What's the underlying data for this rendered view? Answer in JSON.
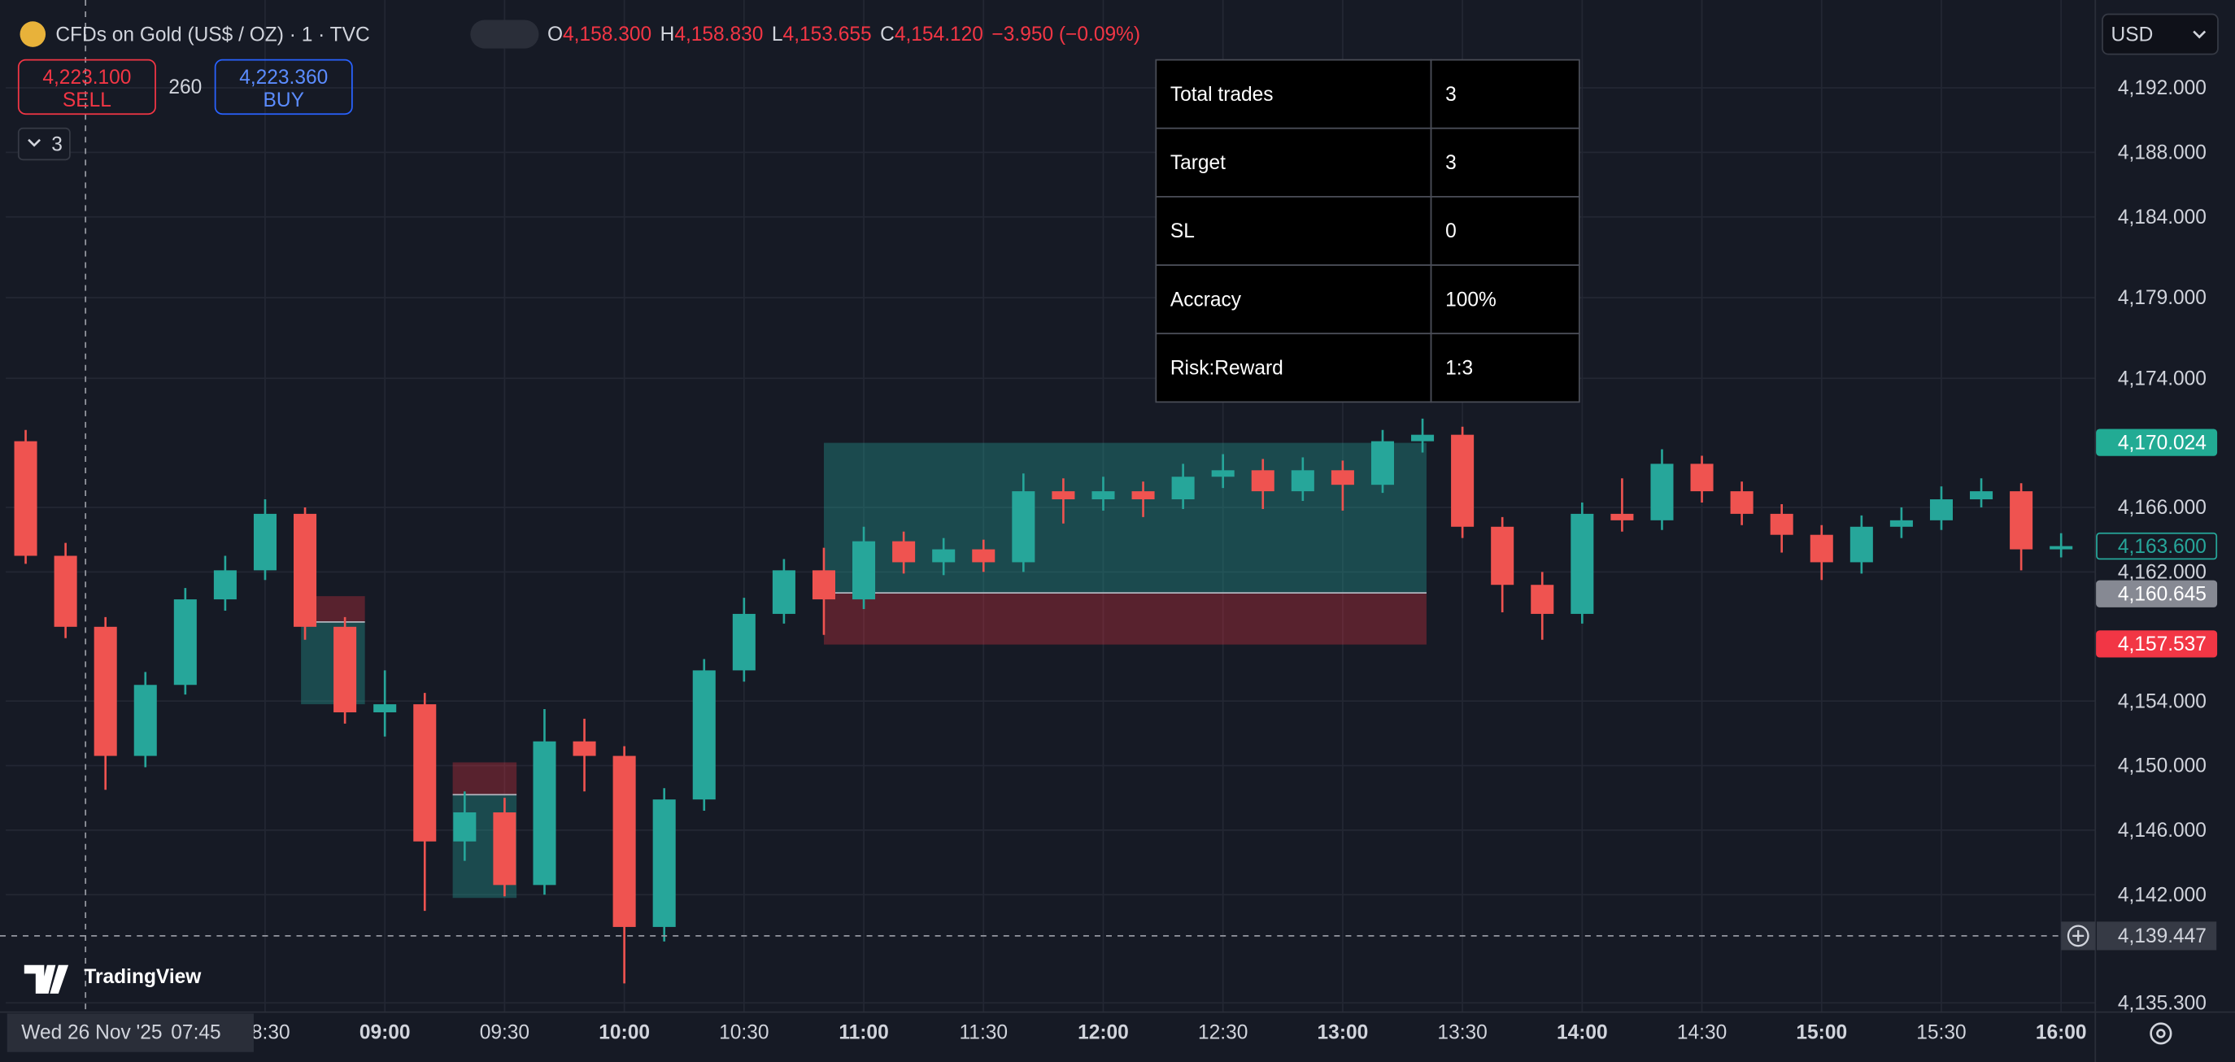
{
  "header": {
    "symbol": "CFDs on Gold (US$ / OZ) · 1 · TVC",
    "ohlc": [
      {
        "key": "O",
        "value": "4,158.300"
      },
      {
        "key": "H",
        "value": "4,158.830"
      },
      {
        "key": "L",
        "value": "4,153.655"
      },
      {
        "key": "C",
        "value": "4,154.120"
      }
    ],
    "change": "−3.950 (−0.09%)"
  },
  "order_panel": {
    "sell_price": "4,223.100",
    "sell": "SELL",
    "spread": "260",
    "buy_price": "4,223.360",
    "buy": "BUY",
    "collapsed_count": "3"
  },
  "currency": "USD",
  "logo": "TradingView",
  "stats_table": {
    "rows": [
      [
        "Total trades",
        "3"
      ],
      [
        "Target",
        "3"
      ],
      [
        "SL",
        "0"
      ],
      [
        "Accracy",
        "100%"
      ],
      [
        "Risk:Reward",
        "1:3"
      ]
    ]
  },
  "chart_data": {
    "type": "candlestick",
    "up_color": "#26a69a",
    "down_color": "#ef5350",
    "grid": true,
    "xlim": [
      "07:25",
      "16:10"
    ],
    "xticks": [
      "08:30",
      "09:00",
      "09:30",
      "10:00",
      "10:30",
      "11:00",
      "11:30",
      "12:00",
      "12:30",
      "13:00",
      "13:30",
      "14:00",
      "14:30",
      "15:00",
      "15:30",
      "16:00"
    ],
    "ylim": [
      4134.9,
      4197.0
    ],
    "yticks": [
      {
        "value": 4192,
        "label": "4,192.000"
      },
      {
        "value": 4188,
        "label": "4,188.000"
      },
      {
        "value": 4184,
        "label": "4,184.000"
      },
      {
        "value": 4179,
        "label": "4,179.000"
      },
      {
        "value": 4174,
        "label": "4,174.000"
      },
      {
        "value": 4166,
        "label": "4,166.000"
      },
      {
        "value": 4162,
        "label": "4,162.000"
      },
      {
        "value": 4154,
        "label": "4,154.000"
      },
      {
        "value": 4150,
        "label": "4,150.000"
      },
      {
        "value": 4146,
        "label": "4,146.000"
      },
      {
        "value": 4142,
        "label": "4,142.000"
      },
      {
        "value": 4135.3,
        "label": "4,135.300"
      }
    ],
    "x": [
      "07:30",
      "07:40",
      "07:50",
      "08:00",
      "08:10",
      "08:20",
      "08:30",
      "08:40",
      "08:50",
      "09:00",
      "09:10",
      "09:20",
      "09:30",
      "09:40",
      "09:50",
      "10:00",
      "10:10",
      "10:20",
      "10:30",
      "10:40",
      "10:50",
      "11:00",
      "11:10",
      "11:20",
      "11:30",
      "11:40",
      "11:50",
      "12:00",
      "12:10",
      "12:20",
      "12:30",
      "12:40",
      "12:50",
      "13:00",
      "13:10",
      "13:20",
      "13:30",
      "13:40",
      "13:50",
      "14:00",
      "14:10",
      "14:20",
      "14:30",
      "14:40",
      "14:50",
      "15:00",
      "15:10",
      "15:20",
      "15:30",
      "15:40",
      "15:50",
      "16:00"
    ],
    "open": [
      4170.1,
      4163.0,
      4158.6,
      4150.6,
      4155.0,
      4160.3,
      4162.1,
      4165.6,
      4158.6,
      4153.3,
      4153.8,
      4145.3,
      4147.1,
      4142.6,
      4151.5,
      4150.6,
      4140.0,
      4147.9,
      4155.9,
      4159.4,
      4162.1,
      4160.3,
      4163.9,
      4162.6,
      4163.4,
      4162.6,
      4167.0,
      4166.5,
      4167.0,
      4166.5,
      4167.9,
      4168.3,
      4167.0,
      4168.3,
      4167.4,
      4170.1,
      4170.5,
      4164.8,
      4161.2,
      4159.4,
      4165.6,
      4165.2,
      4168.7,
      4167.0,
      4165.6,
      4164.3,
      4162.6,
      4164.8,
      4165.2,
      4166.5,
      4167.0,
      4163.4
    ],
    "high": [
      4170.8,
      4163.8,
      4159.2,
      4155.8,
      4161.0,
      4163.0,
      4166.5,
      4166.0,
      4159.2,
      4155.9,
      4154.5,
      4148.4,
      4148.0,
      4153.5,
      4152.9,
      4151.2,
      4148.6,
      4156.6,
      4160.4,
      4162.8,
      4163.5,
      4164.8,
      4164.5,
      4164.1,
      4164.0,
      4168.1,
      4167.8,
      4167.9,
      4167.6,
      4168.7,
      4169.3,
      4169.0,
      4169.1,
      4168.9,
      4170.8,
      4171.5,
      4171.0,
      4165.4,
      4162.0,
      4166.3,
      4167.8,
      4169.6,
      4169.2,
      4167.6,
      4166.2,
      4164.9,
      4165.5,
      4166.0,
      4167.3,
      4167.8,
      4167.5,
      4164.4
    ],
    "low": [
      4162.5,
      4157.9,
      4148.5,
      4149.9,
      4154.4,
      4159.6,
      4161.5,
      4157.8,
      4152.6,
      4151.8,
      4141.0,
      4144.1,
      4141.9,
      4142.0,
      4148.4,
      4136.5,
      4139.1,
      4147.2,
      4155.2,
      4158.8,
      4158.1,
      4159.7,
      4161.9,
      4161.8,
      4162.0,
      4162.0,
      4165.0,
      4165.8,
      4165.4,
      4165.9,
      4167.2,
      4165.9,
      4166.4,
      4165.8,
      4166.9,
      4169.4,
      4164.1,
      4159.5,
      4157.8,
      4158.8,
      4164.5,
      4164.6,
      4166.3,
      4164.9,
      4163.2,
      4161.5,
      4161.9,
      4164.1,
      4164.6,
      4166.0,
      4162.1,
      4162.9
    ],
    "close": [
      4163.0,
      4158.6,
      4150.6,
      4155.0,
      4160.3,
      4162.1,
      4165.6,
      4158.6,
      4153.3,
      4153.8,
      4145.3,
      4147.1,
      4142.6,
      4151.5,
      4150.6,
      4140.0,
      4147.9,
      4155.9,
      4159.4,
      4162.1,
      4160.3,
      4163.9,
      4162.6,
      4163.4,
      4162.6,
      4167.0,
      4166.5,
      4167.0,
      4166.5,
      4167.9,
      4168.3,
      4167.0,
      4168.3,
      4167.4,
      4170.1,
      4170.5,
      4164.8,
      4161.2,
      4159.4,
      4165.6,
      4165.2,
      4168.7,
      4167.0,
      4165.6,
      4164.3,
      4162.6,
      4164.8,
      4165.2,
      4166.5,
      4167.0,
      4163.4,
      4163.6
    ],
    "positions": [
      {
        "start": "08:39",
        "end": "08:55",
        "entry": 4158.9,
        "stop": 4160.5,
        "target": 4153.8
      },
      {
        "start": "09:17",
        "end": "09:33",
        "entry": 4148.2,
        "stop": 4150.2,
        "target": 4141.8
      },
      {
        "start": "10:50",
        "end": "13:21",
        "entry": 4160.7,
        "stop": 4157.5,
        "target": 4170.0
      }
    ],
    "price_labels": [
      {
        "value": 4170.024,
        "label": "4,170.024",
        "color": "#22ab94",
        "style": "fill"
      },
      {
        "value": 4163.6,
        "label": "4,163.600",
        "color": "#26a69a",
        "style": "outline"
      },
      {
        "value": 4160.645,
        "label": "4,160.645",
        "color": "#868993",
        "style": "fill"
      },
      {
        "value": 4157.537,
        "label": "4,157.537",
        "color": "#f23645",
        "style": "fill"
      }
    ],
    "crosshair": {
      "date": "Wed 26 Nov '25",
      "time": "07:45",
      "price": {
        "value": 4139.447,
        "label": "4,139.447"
      }
    }
  }
}
